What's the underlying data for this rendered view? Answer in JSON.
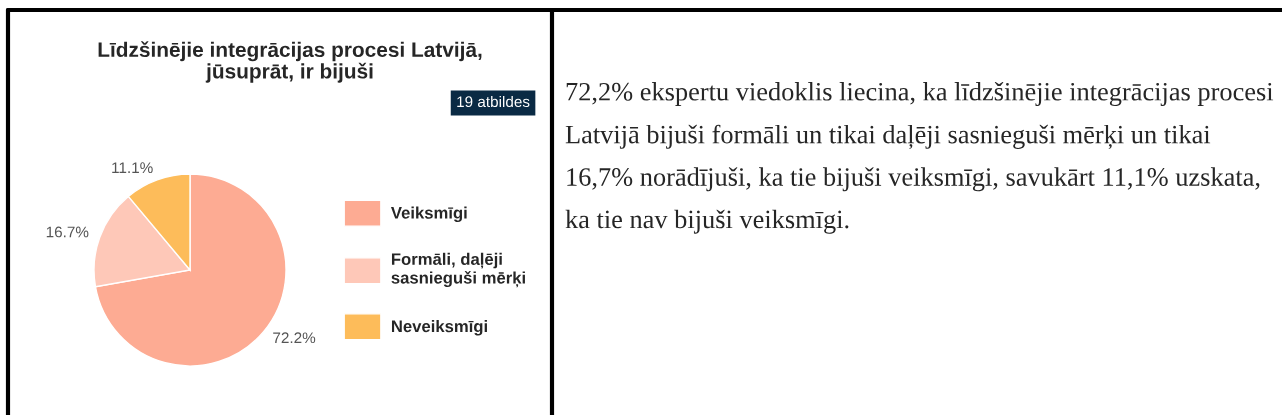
{
  "chart_data": {
    "type": "pie",
    "title": "Līdzšinējie integrācijas procesi Latvijā,\njūsuprāt, ir bijuši",
    "subtitle": "19 atbildes",
    "categories": [
      "Veiksmīgi",
      "Formāli, daļēji sasnieguši mērķi",
      "Neveiksmīgi"
    ],
    "values": [
      72.2,
      16.7,
      11.1
    ],
    "colors": [
      "#fdab93",
      "#fec8b8",
      "#fdbc5a"
    ],
    "value_labels": [
      "72.2%",
      "16.7%",
      "11.1%"
    ],
    "legend": "right",
    "annotations": [
      "72,2% ekspertu viedoklis liecina, ka līdzšinējie integrācijas procesi Latvijā bijuši formāli un tikai daļēji sasnieguši mērķi un tikai 16,7% norādījuši, ka tie bijuši veiksmīgi, savukārt 11,1% uzskata, ka tie nav bijuši veiksmīgi."
    ]
  }
}
